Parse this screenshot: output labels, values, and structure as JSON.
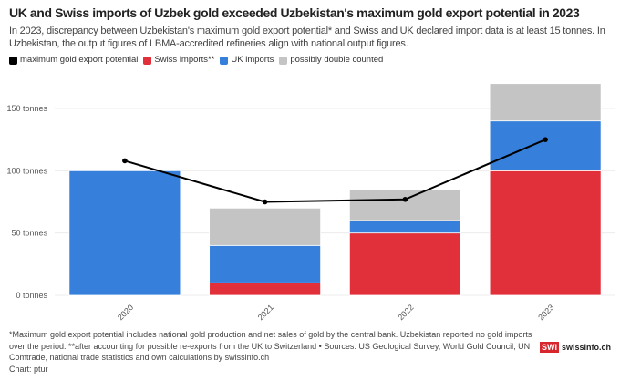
{
  "title": "UK and Swiss imports of Uzbek gold exceeded Uzbekistan's maximum gold export potential in 2023",
  "subtitle": "In 2023, discrepancy between Uzbekistan's maximum gold export potential* and Swiss and UK declared import data is at least 15 tonnes. In Uzbekistan, the output figures of LBMA-accredited refineries align with national output figures.",
  "notes": "*Maximum gold export potential includes national gold production and net sales of gold by the central bank. Uzbekistan reported no gold imports over the period. **after accounting for possible re-exports from the UK to Switzerland • Sources: US Geological Survey, World Gold Council, UN Comtrade, national trade statistics and own calculations by swissinfo.ch",
  "credit": "Chart: ptur",
  "logo": {
    "mark": "SWI",
    "text": "swissinfo.ch"
  },
  "chart_data": {
    "type": "bar",
    "stacked": true,
    "categories": [
      "2020",
      "2021",
      "2022",
      "2023"
    ],
    "series": [
      {
        "name": "Swiss imports**",
        "color": "#e1303a",
        "values": [
          0,
          10,
          50,
          100
        ]
      },
      {
        "name": "UK imports",
        "color": "#3680dc",
        "values": [
          100,
          30,
          10,
          40
        ]
      },
      {
        "name": "possibly double counted",
        "color": "#c4c4c4",
        "values": [
          0,
          30,
          25,
          30
        ]
      }
    ],
    "line": {
      "name": "maximum gold export potential",
      "color": "#000000",
      "values": [
        108,
        75,
        77,
        125
      ]
    },
    "legend_order": [
      "maximum gold export potential",
      "Swiss imports**",
      "UK imports",
      "possibly double counted"
    ],
    "yticks": [
      0,
      50,
      100,
      150
    ],
    "ytick_suffix": " tonnes",
    "ylim": [
      0,
      175
    ],
    "legend_position": "top-left",
    "grid": true
  }
}
